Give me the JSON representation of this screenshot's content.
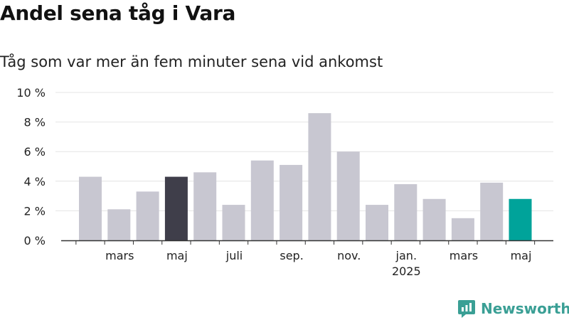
{
  "title": "Andel sena tåg i Vara",
  "subtitle": "Tåg som var mer än fem minuter sena vid ankomst",
  "brand": {
    "name": "Newsworthy",
    "icon": "newsworthy-logo-icon",
    "color": "#3a9f95"
  },
  "colors": {
    "bar": "#c8c7d1",
    "highlight_first": "#3f3e4a",
    "highlight_last": "#00a39a",
    "grid": "#e4e4e4",
    "axis": "#333333",
    "text": "#222222"
  },
  "chart_data": {
    "type": "bar",
    "months": [
      "2024-02",
      "2024-03",
      "2024-04",
      "2024-05",
      "2024-06",
      "2024-07",
      "2024-08",
      "2024-09",
      "2024-10",
      "2024-11",
      "2024-12",
      "2025-01",
      "2025-02",
      "2025-03",
      "2025-04",
      "2025-05"
    ],
    "values": [
      4.3,
      2.1,
      3.3,
      4.3,
      4.6,
      2.4,
      5.4,
      5.1,
      8.6,
      6.0,
      2.4,
      3.8,
      2.8,
      1.5,
      3.9,
      2.8
    ],
    "highlighted": {
      "2024-05": "highlight_first",
      "2025-05": "highlight_last"
    },
    "yticks": [
      {
        "value": 0,
        "label": "0 %"
      },
      {
        "value": 2,
        "label": "2 %"
      },
      {
        "value": 4,
        "label": "4 %"
      },
      {
        "value": 6,
        "label": "6 %"
      },
      {
        "value": 8,
        "label": "8 %"
      },
      {
        "value": 10,
        "label": "10 %"
      }
    ],
    "xticks": [
      {
        "month": "2024-03",
        "label": "mars",
        "sublabel": ""
      },
      {
        "month": "2024-05",
        "label": "maj",
        "sublabel": ""
      },
      {
        "month": "2024-07",
        "label": "juli",
        "sublabel": ""
      },
      {
        "month": "2024-09",
        "label": "sep.",
        "sublabel": ""
      },
      {
        "month": "2024-11",
        "label": "nov.",
        "sublabel": ""
      },
      {
        "month": "2025-01",
        "label": "jan.",
        "sublabel": "2025"
      },
      {
        "month": "2025-03",
        "label": "mars",
        "sublabel": ""
      },
      {
        "month": "2025-05",
        "label": "maj",
        "sublabel": ""
      }
    ],
    "ylim": [
      0,
      10
    ],
    "grid": true,
    "xlabel": "",
    "ylabel": ""
  }
}
